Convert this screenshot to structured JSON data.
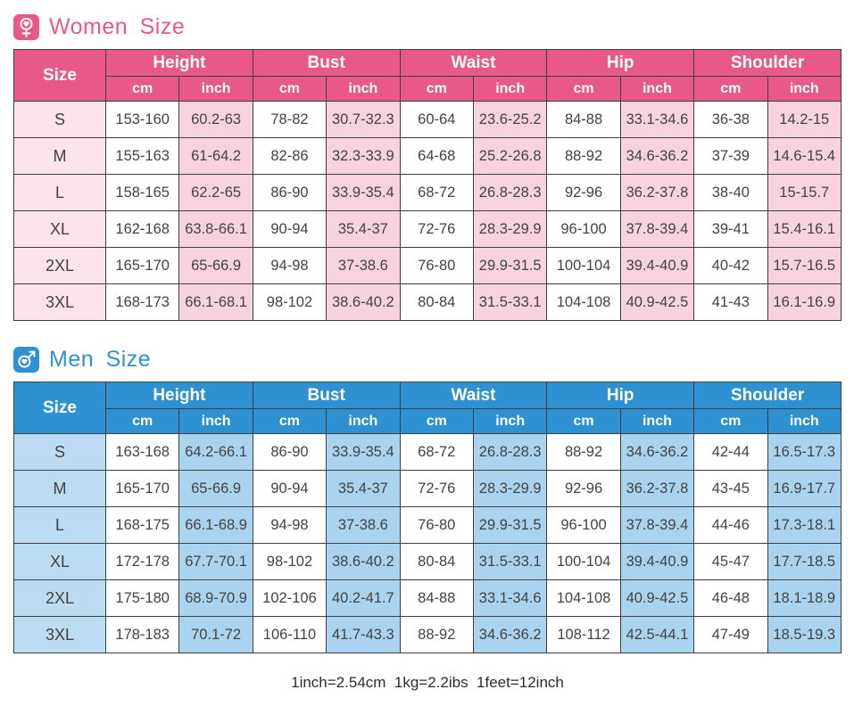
{
  "shared": {
    "size_header": "Size",
    "measure_groups": [
      "Height",
      "Bust",
      "Waist",
      "Hip",
      "Shoulder"
    ],
    "unit_headers": [
      "cm",
      "inch"
    ],
    "footer_note": "1inch=2.54cm  1kg=2.2ibs  1feet=12inch",
    "border_color": "#3f3f3f"
  },
  "sections": {
    "women": {
      "title": "Women Size",
      "icon": "female-symbol-icon",
      "theme": {
        "title_color": "#e8598a",
        "header_bg": "#e8598a",
        "size_bg": "#fce3ec",
        "inch_bg": "#f8d2de",
        "cm_bg": "#ffffff"
      },
      "rows": [
        {
          "size": "S",
          "values": [
            "153-160",
            "60.2-63",
            "78-82",
            "30.7-32.3",
            "60-64",
            "23.6-25.2",
            "84-88",
            "33.1-34.6",
            "36-38",
            "14.2-15"
          ]
        },
        {
          "size": "M",
          "values": [
            "155-163",
            "61-64.2",
            "82-86",
            "32.3-33.9",
            "64-68",
            "25.2-26.8",
            "88-92",
            "34.6-36.2",
            "37-39",
            "14.6-15.4"
          ]
        },
        {
          "size": "L",
          "values": [
            "158-165",
            "62.2-65",
            "86-90",
            "33.9-35.4",
            "68-72",
            "26.8-28.3",
            "92-96",
            "36.2-37.8",
            "38-40",
            "15-15.7"
          ]
        },
        {
          "size": "XL",
          "values": [
            "162-168",
            "63.8-66.1",
            "90-94",
            "35.4-37",
            "72-76",
            "28.3-29.9",
            "96-100",
            "37.8-39.4",
            "39-41",
            "15.4-16.1"
          ]
        },
        {
          "size": "2XL",
          "values": [
            "165-170",
            "65-66.9",
            "94-98",
            "37-38.6",
            "76-80",
            "29.9-31.5",
            "100-104",
            "39.4-40.9",
            "40-42",
            "15.7-16.5"
          ]
        },
        {
          "size": "3XL",
          "values": [
            "168-173",
            "66.1-68.1",
            "98-102",
            "38.6-40.2",
            "80-84",
            "31.5-33.1",
            "104-108",
            "40.9-42.5",
            "41-43",
            "16.1-16.9"
          ]
        }
      ]
    },
    "men": {
      "title": "Men Size",
      "icon": "male-symbol-icon",
      "theme": {
        "title_color": "#2e91d2",
        "header_bg": "#2e91d2",
        "size_bg": "#bcdcf4",
        "inch_bg": "#a9d3ef",
        "cm_bg": "#ffffff"
      },
      "rows": [
        {
          "size": "S",
          "values": [
            "163-168",
            "64.2-66.1",
            "86-90",
            "33.9-35.4",
            "68-72",
            "26.8-28.3",
            "88-92",
            "34.6-36.2",
            "42-44",
            "16.5-17.3"
          ]
        },
        {
          "size": "M",
          "values": [
            "165-170",
            "65-66.9",
            "90-94",
            "35.4-37",
            "72-76",
            "28.3-29.9",
            "92-96",
            "36.2-37.8",
            "43-45",
            "16.9-17.7"
          ]
        },
        {
          "size": "L",
          "values": [
            "168-175",
            "66.1-68.9",
            "94-98",
            "37-38.6",
            "76-80",
            "29.9-31.5",
            "96-100",
            "37.8-39.4",
            "44-46",
            "17.3-18.1"
          ]
        },
        {
          "size": "XL",
          "values": [
            "172-178",
            "67.7-70.1",
            "98-102",
            "38.6-40.2",
            "80-84",
            "31.5-33.1",
            "100-104",
            "39.4-40.9",
            "45-47",
            "17.7-18.5"
          ]
        },
        {
          "size": "2XL",
          "values": [
            "175-180",
            "68.9-70.9",
            "102-106",
            "40.2-41.7",
            "84-88",
            "33.1-34.6",
            "104-108",
            "40.9-42.5",
            "46-48",
            "18.1-18.9"
          ]
        },
        {
          "size": "3XL",
          "values": [
            "178-183",
            "70.1-72",
            "106-110",
            "41.7-43.3",
            "88-92",
            "34.6-36.2",
            "108-112",
            "42.5-44.1",
            "47-49",
            "18.5-19.3"
          ]
        }
      ]
    }
  }
}
